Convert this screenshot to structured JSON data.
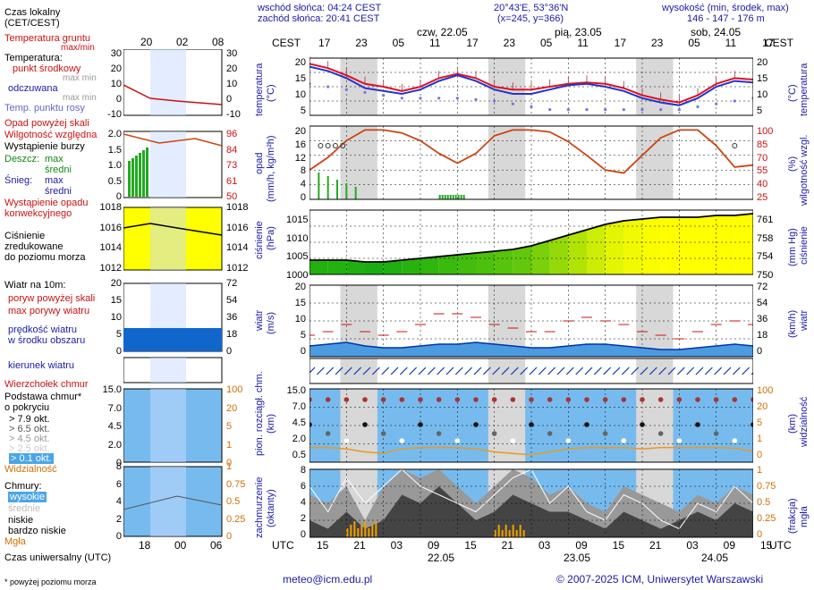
{
  "header": {
    "sunrise": "wschód słońca: 04:24 CEST",
    "sunset": "zachód słońca: 20:41 CEST",
    "coords": "20°43'E, 53°36'N",
    "grid": "(x=245, y=366)",
    "altitude_label": "wysokość (min, środek, max)",
    "altitude_values": "146 - 147 - 176 m"
  },
  "time": {
    "cest_label": "CEST",
    "utc_label": "UTC",
    "days_top": [
      "czw, 22.05",
      "pią, 23.05",
      "sob, 24.05"
    ],
    "days_bottom": [
      "22.05",
      "23.05",
      "24.05"
    ],
    "hours_top": [
      "17",
      "23",
      "05",
      "11",
      "17",
      "23",
      "05",
      "11",
      "17",
      "23",
      "05",
      "11",
      "17"
    ],
    "hours_bottom": [
      "15",
      "21",
      "03",
      "09",
      "15",
      "21",
      "03",
      "09",
      "15",
      "21",
      "03",
      "09",
      "15"
    ]
  },
  "legend": {
    "time_local": "Czas lokalny",
    "time_local2": "(CET/CEST)",
    "time_ticks": [
      "20",
      "02",
      "08"
    ],
    "ground_temp": "Temperatura gruntu",
    "ground_temp2": "max/min",
    "temp": "Temperatura:",
    "temp_mid": "punkt środkowy",
    "temp_max": "max min",
    "temp_min": "max min",
    "feel": "odczuwana",
    "feel_max": "max min",
    "dew": "Temp. punktu rosy",
    "precip_above": "Opad powyżej skali",
    "humidity": "Wilgotność względna",
    "storm": "Wystąpienie burzy",
    "rain": "Deszcz:",
    "rain_max": "max",
    "rain_mid": "średni",
    "snow": "Śnieg:",
    "snow_max": "max",
    "snow_mid": "średni",
    "precip_occ": "Wystąpienie opadu",
    "precip_occ2": "konwekcyjnego",
    "pressure": "Ciśnienie",
    "pressure2": "zredukowane",
    "pressure3": "do poziomu morza",
    "wind10": "Wiatr na 10m:",
    "gust_above": "poryw powyżej skali",
    "gust_max": "max porywy wiatru",
    "wind_mean": "prędkość wiatru",
    "wind_mean2": "w środku obszaru",
    "wind_dir": "kierunek wiatru",
    "cloud_top": "Wierzchołek chmur",
    "cloud_base": "Podstawa chmur*",
    "cloud_base2": "o pokryciu",
    "okt": [
      "> 7.9 okt.",
      "> 6.5 okt.",
      "> 4.5 okt.",
      "> 2.5 okt.",
      "> 0.1 okt."
    ],
    "visibility": "Widzialność",
    "clouds": "Chmury:",
    "cl_high": "wysokie",
    "cl_mid": "średnie",
    "cl_low": "niskie",
    "cl_vlow": "bardzo niskie",
    "fog": "Mgła",
    "utc_time": "Czas uniwersalny (UTC)",
    "footnote": "* powyżej poziomu morza"
  },
  "legend_ticks": {
    "temp_left": [
      "30",
      "20",
      "10",
      "0",
      "-10"
    ],
    "temp_right": [
      "30",
      "20",
      "10",
      "0",
      "-10"
    ],
    "precip_left": [
      "2.0",
      "1.5",
      "1.0",
      "0.5",
      "0"
    ],
    "precip_right": [
      "96",
      "84",
      "73",
      "61",
      "50"
    ],
    "press_left": [
      "1018",
      "1016",
      "1014",
      "1012"
    ],
    "press_right": [
      "1018",
      "1016",
      "1014",
      "1012"
    ],
    "wind_left": [
      "20",
      "15",
      "10",
      "5",
      "0"
    ],
    "wind_right": [
      "72",
      "54",
      "36",
      "18",
      "0"
    ],
    "cb_left": [
      "15.0",
      "7.0",
      "4.5",
      "2.0",
      "0"
    ],
    "cb_right": [
      "100",
      "20",
      "5",
      "1",
      "0"
    ],
    "cl_left": [
      "8",
      "6",
      "4",
      "2",
      "0"
    ],
    "cl_right": [
      "1",
      "0.75",
      "0.5",
      "0.25",
      "0"
    ],
    "bottom_ticks": [
      "18",
      "00",
      "06"
    ]
  },
  "panels": {
    "temp_ylabel": "temperatura",
    "temp_unit": "(°C)",
    "temp_ticks": [
      "20",
      "15",
      "10",
      "5"
    ],
    "precip_ylabel": "opad",
    "precip_unit": "(mm/h, kg/m²h)",
    "precip_ticks": [
      "20",
      "16",
      "12",
      "8",
      "4",
      "0"
    ],
    "hum_ylabel": "wilgotność wzgl.",
    "hum_unit": "(%)",
    "hum_ticks": [
      "100",
      "85",
      "70",
      "55",
      "40",
      "25"
    ],
    "press_ylabel": "ciśnienie",
    "press_unit": "(hPa)",
    "press_ticks": [
      "1015",
      "1010",
      "1005",
      "1000"
    ],
    "press_mm_ylabel": "ciśnienie",
    "press_mm_unit": "(mm Hg)",
    "press_mm_ticks": [
      "761",
      "758",
      "754",
      "750"
    ],
    "wind_ylabel": "wiatr",
    "wind_unit": "(m/s)",
    "wind_ticks": [
      "20",
      "15",
      "10",
      "5",
      "0"
    ],
    "wind_kmh_unit": "(km/h)",
    "wind_kmh_ticks": [
      "72",
      "54",
      "36",
      "18",
      "0"
    ],
    "cb_ylabel": "pion. rozciągł. chm.",
    "cb_unit": "(km)",
    "cb_ticks": [
      "15.0",
      "7.0",
      "4.5",
      "2.0",
      "0.5"
    ],
    "vis_ylabel": "widzialność",
    "vis_unit": "(km)",
    "vis_ticks": [
      "100",
      "20",
      "5",
      "1",
      "0"
    ],
    "cl_ylabel": "zachmurzenie",
    "cl_unit": "(oktanty)",
    "cl_ticks": [
      "8",
      "6",
      "4",
      "2",
      "0"
    ],
    "fog_ylabel": "mgła",
    "fog_unit": "(frakcja)",
    "fog_ticks": [
      "1",
      "0.75",
      "0.5",
      "0.25",
      "0"
    ]
  },
  "footer": {
    "email": "meteo@icm.edu.pl",
    "copyright": "© 2007-2025 ICM, Uniwersytet Warszawski"
  },
  "colors": {
    "temp": "#dd1122",
    "feel": "#2233cc",
    "dew": "#7777dd",
    "humidity": "#cc4411",
    "rain": "#22aa22",
    "pressure_low": "#11aa11",
    "pressure_high": "#ffff00",
    "wind": "#1155bb",
    "gust": "#cc1111",
    "sky": "#77bbee",
    "night": "#d8d8d8"
  },
  "chart_data": [
    {
      "type": "line",
      "title": "temperatura (°C)",
      "x_hours_utc": [
        15,
        18,
        21,
        0,
        3,
        6,
        9,
        12,
        15,
        18,
        21,
        0,
        3,
        6,
        9,
        12,
        15,
        18,
        21,
        0,
        3,
        6,
        9,
        12,
        15
      ],
      "series": [
        {
          "name": "temperatura",
          "values": [
            20,
            18.5,
            16,
            13,
            12,
            10.5,
            12,
            15,
            16.5,
            15,
            12,
            11,
            11,
            12,
            13,
            13.5,
            13,
            11.5,
            9,
            7.5,
            6.5,
            9,
            13,
            15,
            14.5
          ]
        },
        {
          "name": "odczuwana",
          "values": [
            19,
            17.5,
            15,
            11.5,
            10.5,
            9.5,
            11,
            14,
            16,
            14,
            11,
            9.5,
            9.5,
            11,
            12.5,
            13,
            12,
            10.5,
            8,
            6.5,
            5.5,
            8,
            12,
            14,
            13.5
          ]
        },
        {
          "name": "Temp. punktu rosy",
          "values": [
            13,
            12,
            11,
            10,
            9,
            8,
            8,
            8,
            8,
            7.5,
            7,
            6,
            5,
            4,
            4,
            4,
            4,
            4,
            4,
            4,
            4,
            5,
            6,
            7,
            8
          ]
        }
      ],
      "ylim": [
        2,
        22
      ]
    },
    {
      "type": "line",
      "title": "opad / wilgotność względna",
      "series": [
        {
          "name": "Wilgotność względna",
          "values": [
            55,
            68,
            85,
            96,
            96,
            93,
            85,
            72,
            62,
            72,
            90,
            96,
            96,
            94,
            84,
            70,
            55,
            52,
            70,
            88,
            96,
            96,
            80,
            58,
            60
          ]
        }
      ],
      "ylim": [
        25,
        100
      ]
    },
    {
      "type": "area",
      "title": "ciśnienie (hPa)",
      "x_hours_utc": [
        15,
        18,
        21,
        0,
        3,
        6,
        9,
        12,
        15,
        18,
        21,
        0,
        3,
        6,
        9,
        12,
        15,
        18,
        21,
        0,
        3,
        6,
        9,
        12,
        15
      ],
      "series": [
        {
          "name": "ciśnienie",
          "values": [
            1004,
            1004,
            1004,
            1003.5,
            1003.5,
            1004,
            1004.5,
            1005,
            1005.5,
            1006,
            1006.5,
            1007,
            1008,
            1009.5,
            1011,
            1012.5,
            1014,
            1015,
            1015.5,
            1016,
            1016,
            1016,
            1016.5,
            1016.5,
            1017
          ]
        }
      ],
      "ylim": [
        1000,
        1018
      ]
    },
    {
      "type": "area",
      "title": "wiatr (m/s)",
      "series": [
        {
          "name": "prędkość wiatru",
          "values": [
            3,
            3.5,
            4,
            3,
            2.5,
            2.5,
            3,
            3.5,
            3.5,
            4,
            3.5,
            3,
            2.5,
            2.5,
            3,
            3.5,
            3.5,
            3,
            2.5,
            2,
            2,
            2.5,
            3,
            3.5,
            3
          ]
        },
        {
          "name": "max porywy wiatru",
          "values": [
            6,
            7,
            9,
            7,
            6,
            7,
            9,
            12,
            12,
            11,
            9,
            8,
            7,
            7,
            10,
            11,
            10,
            9,
            7,
            6,
            5,
            7,
            9,
            10,
            9
          ]
        }
      ],
      "ylim": [
        0,
        20
      ]
    }
  ]
}
